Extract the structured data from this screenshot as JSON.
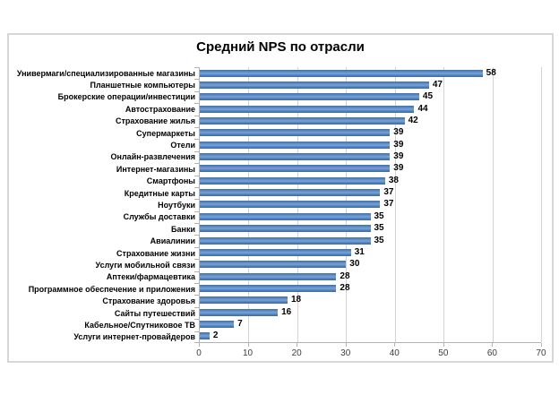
{
  "chart_data": {
    "type": "bar",
    "orientation": "horizontal",
    "title": "Средний NPS по отрасли",
    "categories": [
      "Универмаги/специализированные магазины",
      "Планшетные компьютеры",
      "Брокерские операции/инвестиции",
      "Автострахование",
      "Страхование жилья",
      "Супермаркеты",
      "Отели",
      "Онлайн-развлечения",
      "Интернет-магазины",
      "Смартфоны",
      "Кредитные карты",
      "Ноутбуки",
      "Службы доставки",
      "Банки",
      "Авиалинии",
      "Страхование жизни",
      "Услуги мобильной связи",
      "Аптеки/фармацевтика",
      "Программное обеспечение и приложения",
      "Страхование здоровья",
      "Сайты путешествий",
      "Кабельное/Спутниковое ТВ",
      "Услуги интернет-провайдеров"
    ],
    "values": [
      58,
      47,
      45,
      44,
      42,
      39,
      39,
      39,
      39,
      38,
      37,
      37,
      35,
      35,
      35,
      31,
      30,
      28,
      28,
      18,
      16,
      7,
      2
    ],
    "xlabel": "",
    "ylabel": "",
    "xlim": [
      0,
      70
    ],
    "x_ticks": [
      0,
      10,
      20,
      30,
      40,
      50,
      60,
      70
    ],
    "bar_color": "#4f81bd",
    "grid": true,
    "legend": false,
    "value_labels": true
  }
}
